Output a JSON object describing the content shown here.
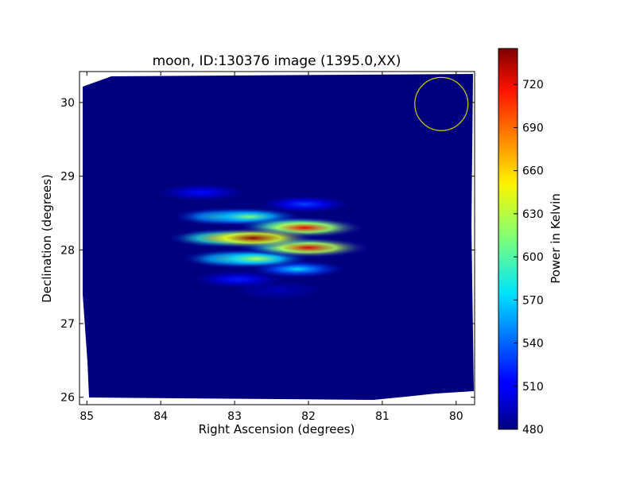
{
  "chart_data": {
    "type": "heatmap",
    "title": "moon, ID:130376 image (1395.0,XX)",
    "xlabel": "Right Ascension (degrees)",
    "ylabel": "Declination (degrees)",
    "colorbar_label": "Power in Kelvin",
    "xlim": [
      85.1,
      79.75
    ],
    "ylim": [
      25.9,
      30.42
    ],
    "x_ticks": [
      85,
      84,
      83,
      82,
      81,
      80
    ],
    "y_ticks": [
      26,
      27,
      28,
      29,
      30
    ],
    "colorbar_range": [
      480,
      745
    ],
    "colorbar_ticks": [
      480,
      510,
      540,
      570,
      600,
      630,
      660,
      690,
      720
    ],
    "colormap": "jet",
    "background_level": 480,
    "sources": [
      {
        "ra": 83.45,
        "dec": 28.78,
        "value": 515
      },
      {
        "ra": 82.05,
        "dec": 28.62,
        "value": 530
      },
      {
        "ra": 83.15,
        "dec": 28.45,
        "value": 600
      },
      {
        "ra": 82.8,
        "dec": 28.45,
        "value": 610
      },
      {
        "ra": 82.2,
        "dec": 28.32,
        "value": 655
      },
      {
        "ra": 82.05,
        "dec": 28.3,
        "value": 715
      },
      {
        "ra": 83.15,
        "dec": 28.16,
        "value": 660
      },
      {
        "ra": 82.75,
        "dec": 28.16,
        "value": 740
      },
      {
        "ra": 82.25,
        "dec": 28.05,
        "value": 630
      },
      {
        "ra": 82.0,
        "dec": 28.03,
        "value": 722
      },
      {
        "ra": 83.0,
        "dec": 27.88,
        "value": 620
      },
      {
        "ra": 82.7,
        "dec": 27.88,
        "value": 625
      },
      {
        "ra": 82.15,
        "dec": 27.74,
        "value": 570
      },
      {
        "ra": 82.95,
        "dec": 27.6,
        "value": 520
      },
      {
        "ra": 82.4,
        "dec": 27.45,
        "value": 495
      }
    ],
    "beam_marker": {
      "ra": 80.2,
      "dec": 29.98,
      "radius_deg": 0.36,
      "color": "#cccc00"
    },
    "grid": false
  }
}
